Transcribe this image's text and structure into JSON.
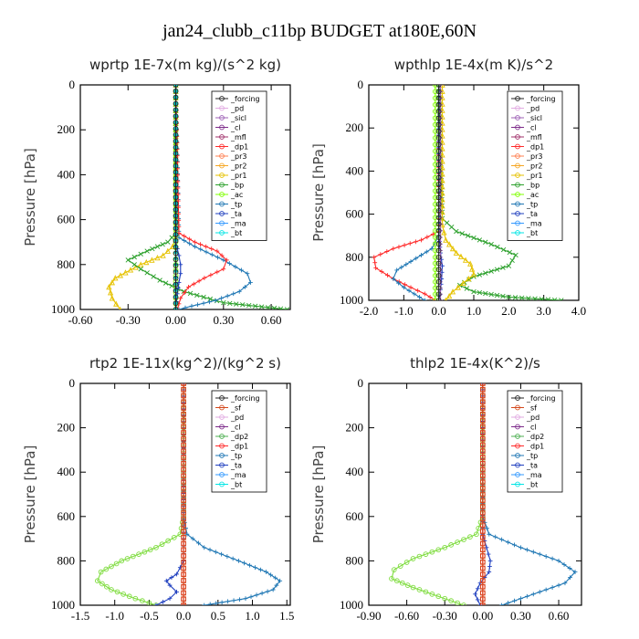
{
  "title": "jan24_clubb_c11bp  BUDGET at180E,60N",
  "chart_data": [
    {
      "type": "line",
      "title": "wprtp   1E-7x(m kg)/(s^2 kg)",
      "ylabel": "Pressure [hPa]",
      "xlim": [
        -0.6,
        0.72
      ],
      "ylim": [
        1000,
        0
      ],
      "xticks": [
        "-0.60",
        "-0.30",
        "0.00",
        "0.30",
        "0.60"
      ],
      "xtick_values": [
        -0.6,
        -0.3,
        0.0,
        0.3,
        0.6
      ],
      "yticks": [
        0,
        200,
        400,
        600,
        800,
        1000
      ],
      "legend": [
        "_forcing",
        "_pd",
        "_sicl",
        "_cl",
        "_mfl",
        "_dp1",
        "_pr3",
        "_pr2",
        "_pr1",
        "_bp",
        "_ac",
        "_tp",
        "_ta",
        "_ma",
        "_bt"
      ],
      "series": [
        {
          "name": "_pr1",
          "color": "#e6c200",
          "marker": "tri",
          "x": [
            0,
            0,
            0,
            -0.02,
            -0.08,
            -0.22,
            -0.38,
            -0.42,
            -0.4,
            -0.35
          ],
          "y": [
            0,
            600,
            680,
            720,
            760,
            800,
            860,
            900,
            950,
            1000
          ]
        },
        {
          "name": "_bp",
          "color": "#2ca02c",
          "marker": "x",
          "x": [
            0,
            0,
            -0.05,
            -0.18,
            -0.3,
            -0.22,
            -0.1,
            0.05,
            0.3,
            0.7
          ],
          "y": [
            0,
            660,
            700,
            740,
            780,
            820,
            870,
            920,
            970,
            1000
          ]
        },
        {
          "name": "_ac",
          "color": "#7fff00",
          "marker": "circle",
          "x": [
            0,
            0,
            0,
            0,
            0,
            0
          ],
          "y": [
            0,
            400,
            700,
            800,
            900,
            1000
          ]
        },
        {
          "name": "_tp",
          "color": "#1f77b4",
          "marker": "plus",
          "x": [
            0,
            0.02,
            0.12,
            0.3,
            0.45,
            0.47,
            0.4,
            0.25,
            0.1,
            0.02
          ],
          "y": [
            0,
            680,
            720,
            780,
            840,
            880,
            920,
            960,
            985,
            1000
          ]
        },
        {
          "name": "_ta",
          "color": "#1f3fbf",
          "marker": "plus",
          "x": [
            0,
            0,
            0.02,
            0.03,
            0.03,
            0.02,
            0.01,
            0
          ],
          "y": [
            0,
            700,
            760,
            800,
            840,
            880,
            930,
            1000
          ]
        },
        {
          "name": "_dp1",
          "color": "#ff2a2a",
          "marker": "plus",
          "x": [
            0,
            0.02,
            0.12,
            0.26,
            0.32,
            0.3,
            0.18,
            0.08,
            0.03,
            0.01
          ],
          "y": [
            0,
            660,
            700,
            740,
            780,
            820,
            860,
            900,
            950,
            1000
          ]
        },
        {
          "name": "_bt",
          "color": "#00cccc",
          "marker": "diamond",
          "x": [
            0,
            0,
            0,
            0
          ],
          "y": [
            0,
            500,
            800,
            1000
          ]
        },
        {
          "name": "_forcing",
          "color": "#222222",
          "marker": "circle",
          "x": [
            0,
            0,
            0,
            0,
            0
          ],
          "y": [
            0,
            250,
            500,
            750,
            1000
          ]
        }
      ]
    },
    {
      "type": "line",
      "title": "wpthlp   1E-4x(m K)/s^2",
      "ylabel": "Pressure [hPa]",
      "xlim": [
        -2.0,
        4.0
      ],
      "ylim": [
        1000,
        0
      ],
      "xticks": [
        "-2.0",
        "-1.0",
        "0.0",
        "1.0",
        "2.0",
        "3.0",
        "4.0"
      ],
      "xtick_values": [
        -2,
        -1,
        0,
        1,
        2,
        3,
        4
      ],
      "yticks": [
        0,
        200,
        400,
        600,
        800,
        1000
      ],
      "legend": [
        "_forcing",
        "_pd",
        "_sicl",
        "_cl",
        "_mfl",
        "_dp1",
        "_pr3",
        "_pr2",
        "_pr1",
        "_bp",
        "_ac",
        "_tp",
        "_ta",
        "_ma",
        "_bt"
      ],
      "series": [
        {
          "name": "_bp",
          "color": "#2ca02c",
          "marker": "x",
          "x": [
            0,
            0.1,
            0.5,
            1.5,
            2.2,
            2.0,
            1.0,
            0.6,
            1.0,
            2.0,
            3.5
          ],
          "y": [
            0,
            620,
            680,
            740,
            790,
            840,
            890,
            930,
            960,
            985,
            1000
          ]
        },
        {
          "name": "_pr1",
          "color": "#e6c200",
          "marker": "tri",
          "x": [
            0.1,
            0.1,
            0.2,
            0.5,
            0.9,
            1.0,
            0.7,
            0.4,
            0.2
          ],
          "y": [
            0,
            650,
            720,
            780,
            830,
            880,
            920,
            960,
            1000
          ]
        },
        {
          "name": "_dp1",
          "color": "#ff2a2a",
          "marker": "plus",
          "x": [
            0,
            0,
            -0.5,
            -1.3,
            -1.85,
            -1.8,
            -1.3,
            -0.8,
            -0.4,
            -0.1
          ],
          "y": [
            0,
            680,
            720,
            760,
            800,
            850,
            900,
            940,
            970,
            1000
          ]
        },
        {
          "name": "_tp",
          "color": "#1f77b4",
          "marker": "plus",
          "x": [
            0,
            0,
            -0.2,
            -0.8,
            -1.2,
            -1.3,
            -1.0,
            -0.7,
            -0.4
          ],
          "y": [
            0,
            700,
            760,
            820,
            860,
            900,
            940,
            970,
            1000
          ]
        },
        {
          "name": "_ta",
          "color": "#1f3fbf",
          "marker": "plus",
          "x": [
            0,
            0,
            0.05,
            0.1,
            0.08,
            0.05,
            0
          ],
          "y": [
            0,
            700,
            780,
            840,
            900,
            950,
            1000
          ]
        },
        {
          "name": "_ac",
          "color": "#7fff00",
          "marker": "circle",
          "x": [
            -0.1,
            -0.1,
            -0.1,
            -0.1
          ],
          "y": [
            0,
            400,
            800,
            1000
          ]
        },
        {
          "name": "_cl",
          "color": "#9c5fb5",
          "marker": "plus",
          "x": [
            0.05,
            0.05,
            0.05,
            0.05
          ],
          "y": [
            0,
            400,
            800,
            1000
          ]
        },
        {
          "name": "_forcing",
          "color": "#222222",
          "marker": "circle",
          "x": [
            0,
            0,
            0,
            0
          ],
          "y": [
            0,
            400,
            800,
            1000
          ]
        }
      ]
    },
    {
      "type": "line",
      "title": "rtp2   1E-11x(kg^2)/(kg^2 s)",
      "ylabel": "Pressure [hPa]",
      "xlim": [
        -1.5,
        1.55
      ],
      "ylim": [
        1000,
        0
      ],
      "xticks": [
        "-1.5",
        "-1.0",
        "-0.5",
        "0.0",
        "0.5",
        "1.0",
        "1.5"
      ],
      "xtick_values": [
        -1.5,
        -1.0,
        -0.5,
        0.0,
        0.5,
        1.0,
        1.5
      ],
      "yticks": [
        0,
        200,
        400,
        600,
        800,
        1000
      ],
      "legend": [
        "_forcing",
        "_sf",
        "_pd",
        "_cl",
        "_dp2",
        "_dp1",
        "_tp",
        "_ta",
        "_ma",
        "_bt"
      ],
      "series": [
        {
          "name": "_dp1",
          "color": "#7fdc3f",
          "marker": "circle",
          "x": [
            0,
            0,
            -0.05,
            -0.4,
            -0.9,
            -1.2,
            -1.25,
            -1.05,
            -0.7,
            -0.4
          ],
          "y": [
            0,
            600,
            680,
            740,
            800,
            850,
            890,
            930,
            970,
            1000
          ]
        },
        {
          "name": "_tp",
          "color": "#1f77b4",
          "marker": "plus",
          "x": [
            0,
            0,
            0.05,
            0.3,
            0.8,
            1.2,
            1.4,
            1.3,
            0.9,
            0.3
          ],
          "y": [
            0,
            600,
            680,
            740,
            800,
            850,
            890,
            930,
            970,
            1000
          ]
        },
        {
          "name": "_ta",
          "color": "#1f3fbf",
          "marker": "plus",
          "x": [
            0,
            0,
            0,
            -0.1,
            -0.25,
            -0.2,
            -0.1,
            -0.2,
            -0.4
          ],
          "y": [
            0,
            700,
            800,
            860,
            890,
            910,
            940,
            970,
            1000
          ]
        },
        {
          "name": "_forcing",
          "color": "#ff2a2a",
          "marker": "circle",
          "x": [
            0,
            0,
            0,
            0,
            0
          ],
          "y": [
            0,
            250,
            500,
            750,
            1000
          ]
        },
        {
          "name": "_sf",
          "color": "#d4481c",
          "marker": "square",
          "x": [
            0,
            0,
            0,
            0,
            0
          ],
          "y": [
            0,
            250,
            500,
            750,
            1000
          ]
        }
      ]
    },
    {
      "type": "line",
      "title": "thlp2   1E-4x(K^2)/s",
      "ylabel": "Pressure [hPa]",
      "xlim": [
        -0.9,
        0.78
      ],
      "ylim": [
        1000,
        0
      ],
      "xticks": [
        "-0.90",
        "-0.60",
        "-0.30",
        "0.00",
        "0.30",
        "0.60"
      ],
      "xtick_values": [
        -0.9,
        -0.6,
        -0.3,
        0.0,
        0.3,
        0.6
      ],
      "yticks": [
        0,
        200,
        400,
        600,
        800,
        1000
      ],
      "legend": [
        "_forcing",
        "_sf",
        "_pd",
        "_cl",
        "_dp2",
        "_dp1",
        "_tp",
        "_ta",
        "_ma",
        "_bt"
      ],
      "series": [
        {
          "name": "_dp1",
          "color": "#7fdc3f",
          "marker": "circle",
          "x": [
            0,
            0,
            -0.05,
            -0.3,
            -0.55,
            -0.7,
            -0.72,
            -0.55,
            -0.3,
            -0.15
          ],
          "y": [
            0,
            600,
            680,
            740,
            790,
            840,
            880,
            920,
            970,
            1000
          ]
        },
        {
          "name": "_tp",
          "color": "#1f77b4",
          "marker": "plus",
          "x": [
            0,
            0,
            0.05,
            0.3,
            0.6,
            0.73,
            0.65,
            0.4,
            0.15
          ],
          "y": [
            0,
            600,
            680,
            740,
            800,
            850,
            900,
            950,
            1000
          ]
        },
        {
          "name": "_ta",
          "color": "#1f3fbf",
          "marker": "plus",
          "x": [
            0,
            0,
            0.03,
            0.06,
            0.05,
            -0.02,
            -0.06,
            -0.02
          ],
          "y": [
            0,
            680,
            740,
            800,
            850,
            900,
            950,
            1000
          ]
        },
        {
          "name": "_forcing",
          "color": "#ff2a2a",
          "marker": "circle",
          "x": [
            0,
            0,
            0,
            0,
            0
          ],
          "y": [
            0,
            250,
            500,
            750,
            1000
          ]
        },
        {
          "name": "_sf",
          "color": "#d4481c",
          "marker": "square",
          "x": [
            0,
            0,
            0,
            0,
            0
          ],
          "y": [
            0,
            250,
            500,
            750,
            1000
          ]
        }
      ]
    }
  ]
}
